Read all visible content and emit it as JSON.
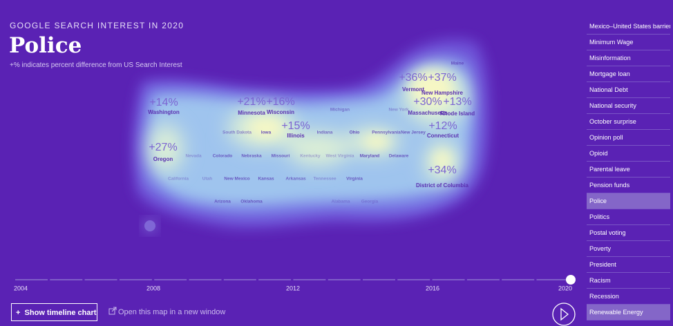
{
  "header": {
    "kicker": "GOOGLE SEARCH INTEREST IN 2020",
    "title": "Police",
    "subtitle": "+% indicates percent difference from US Search Interest"
  },
  "map": {
    "highlighted": [
      {
        "value": "+14%",
        "state": "Washington"
      },
      {
        "value": "+27%",
        "state": "Oregon"
      },
      {
        "value": "+21%",
        "state": "Minnesota"
      },
      {
        "value": "+16%",
        "state": "Wisconsin"
      },
      {
        "value": "+15%",
        "state": "Illinois"
      },
      {
        "value": "+36%",
        "state": "Vermont"
      },
      {
        "value": "+37%",
        "state": "New Hampshire"
      },
      {
        "value": "+30%",
        "state": "Massachusetts"
      },
      {
        "value": "+13%",
        "state": "Rhode Island"
      },
      {
        "value": "+12%",
        "state": "Connecticut"
      },
      {
        "value": "+34%",
        "state": "District of Columbia"
      }
    ],
    "states": [
      "Maine",
      "Michigan",
      "New York",
      "South Dakota",
      "Iowa",
      "Indiana",
      "Ohio",
      "Pennsylvania",
      "New Jersey",
      "Nevada",
      "Colorado",
      "Nebraska",
      "Missouri",
      "Kentucky",
      "West Virginia",
      "Maryland",
      "Delaware",
      "California",
      "Utah",
      "New Mexico",
      "Kansas",
      "Arkansas",
      "Tennessee",
      "Virginia",
      "Arizona",
      "Oklahoma",
      "Alabama",
      "Georgia"
    ]
  },
  "timeline": {
    "years": [
      "2004",
      "2008",
      "2012",
      "2016",
      "2020"
    ]
  },
  "controls": {
    "timeline_button": "Show timeline chart",
    "open_link": "Open this map in a new window"
  },
  "topics": [
    "Mexico–United States barrier",
    "Minimum Wage",
    "Misinformation",
    "Mortgage loan",
    "National Debt",
    "National security",
    "October surprise",
    "Opinion poll",
    "Opioid",
    "Parental leave",
    "Pension funds",
    "Police",
    "Politics",
    "Postal voting",
    "Poverty",
    "President",
    "Racism",
    "Recession",
    "Renewable Energy"
  ]
}
